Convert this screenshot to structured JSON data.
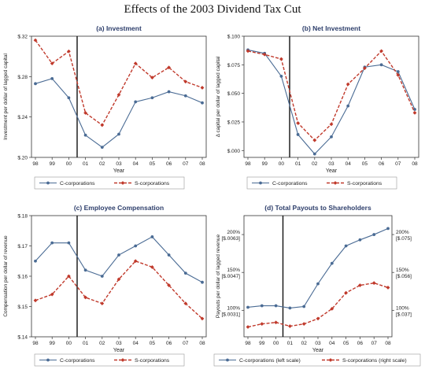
{
  "page_title": "Effects of the 2003 Dividend Tax Cut",
  "chart_data": [
    {
      "id": "investment",
      "type": "line",
      "title": "(a) Investment",
      "xlabel": "Year",
      "ylabel": "Investment per dollar of lagged capital",
      "categories": [
        "98",
        "99",
        "00",
        "01",
        "02",
        "03",
        "04",
        "05",
        "06",
        "07",
        "08"
      ],
      "ylim": [
        0.2,
        0.32
      ],
      "yticks": [
        {
          "value": 0.2,
          "label": "$.20"
        },
        {
          "value": 0.24,
          "label": "$.24"
        },
        {
          "value": 0.28,
          "label": "$.28"
        },
        {
          "value": 0.32,
          "label": "$.32"
        }
      ],
      "reform_line": 2.5,
      "series": [
        {
          "name": "C-corporations",
          "color": "#4a6b94",
          "marker": "circle",
          "dash": false,
          "values": [
            0.273,
            0.278,
            0.259,
            0.222,
            0.21,
            0.223,
            0.255,
            0.259,
            0.265,
            0.261,
            0.254
          ]
        },
        {
          "name": "S-corporations",
          "color": "#c0392b",
          "marker": "diamond",
          "dash": true,
          "values": [
            0.316,
            0.293,
            0.305,
            0.244,
            0.232,
            0.262,
            0.293,
            0.279,
            0.289,
            0.275,
            0.269
          ]
        }
      ]
    },
    {
      "id": "net-investment",
      "type": "line",
      "title": "(b) Net Investment",
      "xlabel": "Year",
      "ylabel": "Δ capital per dollar of lagged capital",
      "categories": [
        "98",
        "99",
        "00",
        "01",
        "02",
        "03",
        "04",
        "05",
        "06",
        "07",
        "08"
      ],
      "ylim": [
        -0.006,
        0.1
      ],
      "yticks": [
        {
          "value": 0.0,
          "label": "$.000"
        },
        {
          "value": 0.025,
          "label": "$.025"
        },
        {
          "value": 0.05,
          "label": "$.050"
        },
        {
          "value": 0.075,
          "label": "$.075"
        },
        {
          "value": 0.1,
          "label": "$.100"
        }
      ],
      "reform_line": 2.5,
      "series": [
        {
          "name": "C-corporations",
          "color": "#4a6b94",
          "marker": "circle",
          "dash": false,
          "values": [
            0.088,
            0.085,
            0.065,
            0.014,
            -0.003,
            0.012,
            0.039,
            0.073,
            0.075,
            0.069,
            0.036
          ]
        },
        {
          "name": "S-corporations",
          "color": "#c0392b",
          "marker": "diamond",
          "dash": true,
          "values": [
            0.087,
            0.084,
            0.08,
            0.024,
            0.009,
            0.023,
            0.058,
            0.072,
            0.087,
            0.066,
            0.033
          ]
        }
      ]
    },
    {
      "id": "employee-compensation",
      "type": "line",
      "title": "(c) Employee Compensation",
      "xlabel": "Year",
      "ylabel": "Compensation per dollar of revenue",
      "categories": [
        "98",
        "99",
        "00",
        "01",
        "02",
        "03",
        "04",
        "05",
        "06",
        "07",
        "08"
      ],
      "ylim": [
        0.14,
        0.18
      ],
      "yticks": [
        {
          "value": 0.14,
          "label": "$.14"
        },
        {
          "value": 0.15,
          "label": "$.15"
        },
        {
          "value": 0.16,
          "label": "$.16"
        },
        {
          "value": 0.17,
          "label": "$.17"
        },
        {
          "value": 0.18,
          "label": "$.18"
        }
      ],
      "reform_line": 2.5,
      "series": [
        {
          "name": "C-corporations",
          "color": "#4a6b94",
          "marker": "circle",
          "dash": false,
          "values": [
            0.165,
            0.171,
            0.171,
            0.162,
            0.16,
            0.167,
            0.17,
            0.173,
            0.167,
            0.161,
            0.158
          ]
        },
        {
          "name": "S-corporations",
          "color": "#c0392b",
          "marker": "diamond",
          "dash": true,
          "values": [
            0.152,
            0.154,
            0.16,
            0.153,
            0.151,
            0.159,
            0.165,
            0.163,
            0.157,
            0.151,
            0.146
          ]
        }
      ]
    },
    {
      "id": "total-payouts",
      "type": "line",
      "title": "(d) Total Payouts to Shareholders",
      "xlabel": "Year",
      "ylabel": "Payouts per dollar of lagged revenue",
      "categories": [
        "98",
        "99",
        "00",
        "01",
        "02",
        "03",
        "04",
        "05",
        "06",
        "07",
        "08"
      ],
      "ylim": [
        65,
        225
      ],
      "yticks_left": [
        {
          "value": 100,
          "label": "100%",
          "sub": "[$.0031]"
        },
        {
          "value": 150,
          "label": "150%",
          "sub": "[$.0047]"
        },
        {
          "value": 200,
          "label": "200%",
          "sub": "[$.0063]"
        }
      ],
      "yticks_right": [
        {
          "value": 100,
          "label": "100%",
          "sub": "[$.037]"
        },
        {
          "value": 150,
          "label": "150%",
          "sub": "[$.056]"
        },
        {
          "value": 200,
          "label": "200%",
          "sub": "[$.075]"
        }
      ],
      "reform_line": 2.5,
      "series": [
        {
          "name": "C-corporations (left scale)",
          "color": "#4a6b94",
          "marker": "circle",
          "dash": false,
          "values": [
            104,
            106,
            106,
            103,
            105,
            135,
            162,
            185,
            193,
            200,
            208
          ]
        },
        {
          "name": "S-corporations (right scale)",
          "color": "#c0392b",
          "marker": "diamond",
          "dash": true,
          "values": [
            78,
            82,
            84,
            79,
            82,
            89,
            102,
            123,
            133,
            136,
            130
          ]
        }
      ]
    }
  ]
}
